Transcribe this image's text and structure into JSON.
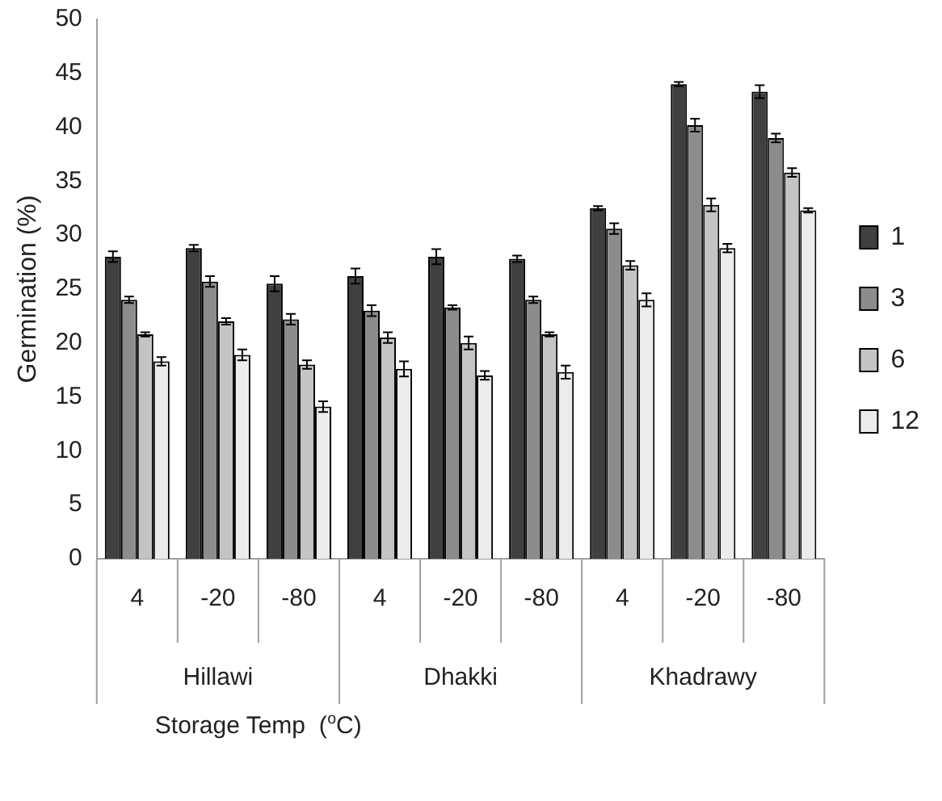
{
  "chart_data": {
    "type": "bar",
    "xlabel": "Storage Temp  ($^{o}$C)",
    "ylabel": "Germination (%)",
    "categories": [
      "4",
      "-20",
      "-80",
      "4",
      "-20",
      "-80",
      "4",
      "-20",
      "-80"
    ],
    "annotations": [
      "Hillawi",
      "Dhakki",
      "Khadrawy"
    ],
    "series": [
      {
        "name": "1",
        "color": "#404040",
        "values": [
          28,
          28.8,
          25.5,
          26.2,
          28,
          27.8,
          32.5,
          44,
          43.3
        ],
        "errors": [
          0.5,
          0.3,
          0.7,
          0.7,
          0.7,
          0.3,
          0.2,
          0.2,
          0.6
        ]
      },
      {
        "name": "3",
        "color": "#8c8c8c",
        "values": [
          24,
          25.7,
          22.2,
          23,
          23.3,
          24,
          30.6,
          40.2,
          39
        ],
        "errors": [
          0.3,
          0.5,
          0.5,
          0.5,
          0.2,
          0.3,
          0.5,
          0.6,
          0.4
        ]
      },
      {
        "name": "6",
        "color": "#c4c4c4",
        "values": [
          20.8,
          22,
          18,
          20.5,
          20,
          20.8,
          27.2,
          32.8,
          35.8
        ],
        "errors": [
          0.2,
          0.3,
          0.4,
          0.5,
          0.6,
          0.2,
          0.4,
          0.6,
          0.4
        ]
      },
      {
        "name": "12",
        "color": "#ececec",
        "values": [
          18.3,
          18.9,
          14.1,
          17.6,
          17,
          17.3,
          24,
          28.8,
          32.3
        ],
        "errors": [
          0.4,
          0.5,
          0.5,
          0.7,
          0.4,
          0.6,
          0.6,
          0.4,
          0.2
        ]
      }
    ],
    "ylim": [
      0,
      50
    ],
    "yticks": [
      0,
      5,
      10,
      15,
      20,
      25,
      30,
      35,
      40,
      45,
      50
    ],
    "grid": false,
    "legend": "right"
  }
}
